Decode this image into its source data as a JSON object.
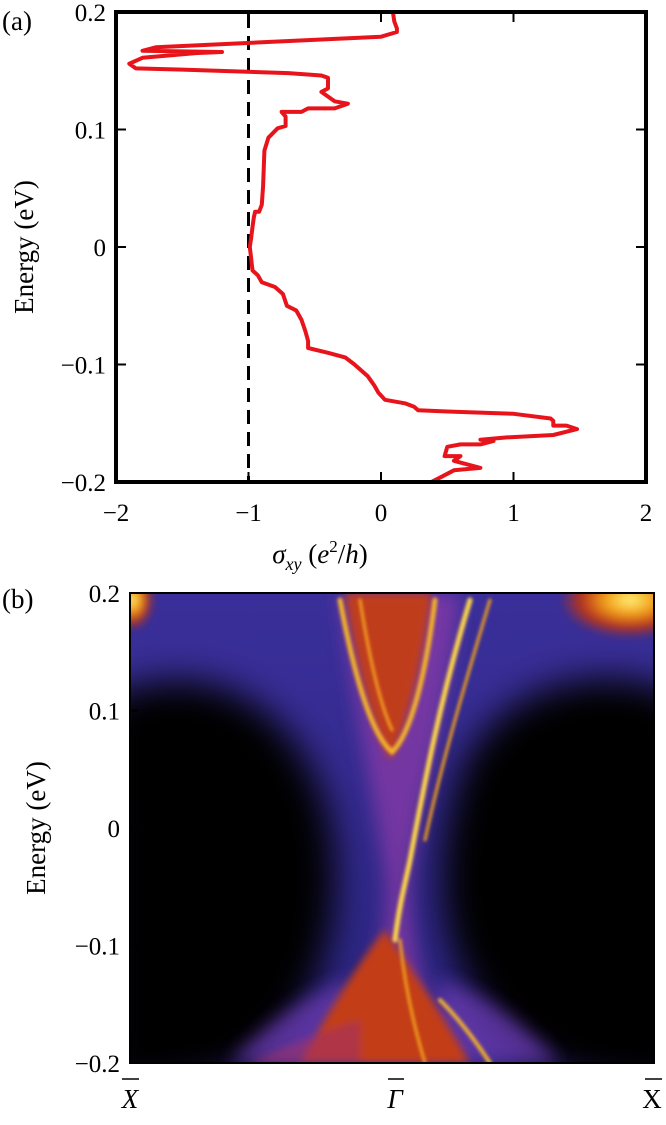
{
  "chart_data": [
    {
      "panel_label": "(a)",
      "type": "line",
      "xlabel_parts": {
        "sigma": "σ",
        "sub": "xy",
        "paren_open": " (",
        "e": "e",
        "sup": "2",
        "slash_h": "/",
        "h": "h",
        "paren_close": ")"
      },
      "ylabel": "Energy (eV)",
      "xlim": [
        -2,
        2
      ],
      "ylim": [
        -0.2,
        0.2
      ],
      "xticks": [
        -2,
        -1,
        0,
        1,
        2
      ],
      "xtick_labels": [
        "−2",
        "−1",
        "0",
        "1",
        "2"
      ],
      "yticks": [
        0.2,
        0.1,
        0,
        -0.1,
        -0.2
      ],
      "ytick_labels": [
        "0.2",
        "0.1",
        "0",
        "−0.1",
        "−0.2"
      ],
      "reference_line": {
        "x": -1,
        "style": "dashed",
        "color": "#000000"
      },
      "series": [
        {
          "color": "#e8141b",
          "points": [
            [
              0.09,
              0.2
            ],
            [
              0.1,
              0.192
            ],
            [
              0.12,
              0.186
            ],
            [
              0.12,
              0.183
            ],
            [
              0.0,
              0.179
            ],
            [
              -1.7,
              0.17
            ],
            [
              -1.8,
              0.167
            ],
            [
              -1.2,
              0.166
            ],
            [
              -1.4,
              0.165
            ],
            [
              -1.8,
              0.161
            ],
            [
              -1.9,
              0.156
            ],
            [
              -1.85,
              0.152
            ],
            [
              -1.5,
              0.151
            ],
            [
              -0.7,
              0.148
            ],
            [
              -0.45,
              0.146
            ],
            [
              -0.4,
              0.144
            ],
            [
              -0.4,
              0.135
            ],
            [
              -0.45,
              0.132
            ],
            [
              -0.35,
              0.124
            ],
            [
              -0.25,
              0.122
            ],
            [
              -0.35,
              0.118
            ],
            [
              -0.55,
              0.118
            ],
            [
              -0.6,
              0.115
            ],
            [
              -0.75,
              0.115
            ],
            [
              -0.72,
              0.111
            ],
            [
              -0.72,
              0.103
            ],
            [
              -0.78,
              0.101
            ],
            [
              -0.85,
              0.093
            ],
            [
              -0.88,
              0.082
            ],
            [
              -0.89,
              0.052
            ],
            [
              -0.9,
              0.036
            ],
            [
              -0.92,
              0.03
            ],
            [
              -0.95,
              0.03
            ],
            [
              -0.96,
              0.025
            ],
            [
              -0.97,
              0.017
            ],
            [
              -0.98,
              0.008
            ],
            [
              -0.99,
              0.0
            ],
            [
              -0.98,
              -0.01
            ],
            [
              -0.97,
              -0.02
            ],
            [
              -0.93,
              -0.024
            ],
            [
              -0.9,
              -0.03
            ],
            [
              -0.8,
              -0.034
            ],
            [
              -0.74,
              -0.04
            ],
            [
              -0.71,
              -0.05
            ],
            [
              -0.64,
              -0.054
            ],
            [
              -0.6,
              -0.062
            ],
            [
              -0.57,
              -0.072
            ],
            [
              -0.55,
              -0.08
            ],
            [
              -0.55,
              -0.086
            ],
            [
              -0.4,
              -0.09
            ],
            [
              -0.27,
              -0.094
            ],
            [
              -0.2,
              -0.1
            ],
            [
              -0.1,
              -0.11
            ],
            [
              -0.05,
              -0.118
            ],
            [
              -0.02,
              -0.124
            ],
            [
              0.03,
              -0.13
            ],
            [
              0.18,
              -0.133
            ],
            [
              0.25,
              -0.136
            ],
            [
              0.28,
              -0.139
            ],
            [
              0.5,
              -0.14
            ],
            [
              1.0,
              -0.142
            ],
            [
              1.28,
              -0.146
            ],
            [
              1.3,
              -0.148
            ],
            [
              1.3,
              -0.152
            ],
            [
              1.4,
              -0.152
            ],
            [
              1.48,
              -0.155
            ],
            [
              1.3,
              -0.16
            ],
            [
              0.95,
              -0.162
            ],
            [
              0.75,
              -0.164
            ],
            [
              0.85,
              -0.165
            ],
            [
              0.75,
              -0.168
            ],
            [
              0.6,
              -0.168
            ],
            [
              0.5,
              -0.17
            ],
            [
              0.48,
              -0.178
            ],
            [
              0.6,
              -0.178
            ],
            [
              0.55,
              -0.182
            ],
            [
              0.75,
              -0.188
            ],
            [
              0.55,
              -0.19
            ],
            [
              0.45,
              -0.196
            ],
            [
              0.38,
              -0.2
            ]
          ]
        }
      ]
    },
    {
      "panel_label": "(b)",
      "type": "heatmap",
      "ylabel": "Energy (eV)",
      "ylim": [
        -0.2,
        0.2
      ],
      "yticks": [
        0.2,
        0.1,
        0,
        -0.1,
        -0.2
      ],
      "ytick_labels": [
        "0.2",
        "0.1",
        "0",
        "−0.1",
        "−0.2"
      ],
      "xtick_labels": [
        "X",
        "Γ",
        "X"
      ],
      "colormap": [
        "#000000",
        "#4a3cc0",
        "#7e2fa6",
        "#c33c12",
        "#f2a21a",
        "#fff27a"
      ]
    }
  ]
}
